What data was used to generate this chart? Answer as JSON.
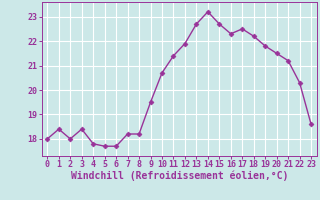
{
  "x": [
    0,
    1,
    2,
    3,
    4,
    5,
    6,
    7,
    8,
    9,
    10,
    11,
    12,
    13,
    14,
    15,
    16,
    17,
    18,
    19,
    20,
    21,
    22,
    23
  ],
  "y": [
    18.0,
    18.4,
    18.0,
    18.4,
    17.8,
    17.7,
    17.7,
    18.2,
    18.2,
    19.5,
    20.7,
    21.4,
    21.9,
    22.7,
    23.2,
    22.7,
    22.3,
    22.5,
    22.2,
    21.8,
    21.5,
    21.2,
    20.3,
    18.6
  ],
  "line_color": "#993399",
  "marker": "D",
  "markersize": 2.5,
  "linewidth": 1.0,
  "xlabel": "Windchill (Refroidissement éolien,°C)",
  "xlabel_fontsize": 7,
  "bg_color": "#cce8e8",
  "grid_color": "#ffffff",
  "tick_color": "#993399",
  "tick_fontsize": 6,
  "ylabel_ticks": [
    18,
    19,
    20,
    21,
    22,
    23
  ],
  "xlim": [
    -0.5,
    23.5
  ],
  "ylim": [
    17.3,
    23.6
  ]
}
